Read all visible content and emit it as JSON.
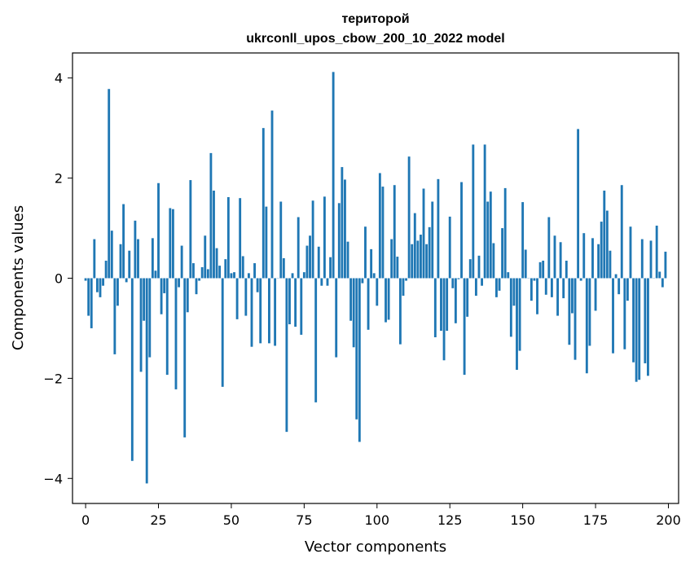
{
  "chart_data": {
    "type": "bar",
    "title_line1": "територой",
    "title_line2": "ukrconll_upos_cbow_200_10_2022 model",
    "xlabel": "Vector components",
    "ylabel": "Components values",
    "xlim": [
      -4.5,
      203.5
    ],
    "ylim": [
      -4.5,
      4.5
    ],
    "xticks": [
      0,
      25,
      50,
      75,
      100,
      125,
      150,
      175,
      200
    ],
    "yticks": [
      -4,
      -2,
      0,
      2,
      4
    ],
    "ytick_labels": [
      "−4",
      "−2",
      "0",
      "2",
      "4"
    ],
    "grid": false,
    "bar_color": "#1f77b4",
    "x": [
      0,
      1,
      2,
      3,
      4,
      5,
      6,
      7,
      8,
      9,
      10,
      11,
      12,
      13,
      14,
      15,
      16,
      17,
      18,
      19,
      20,
      21,
      22,
      23,
      24,
      25,
      26,
      27,
      28,
      29,
      30,
      31,
      32,
      33,
      34,
      35,
      36,
      37,
      38,
      39,
      40,
      41,
      42,
      43,
      44,
      45,
      46,
      47,
      48,
      49,
      50,
      51,
      52,
      53,
      54,
      55,
      56,
      57,
      58,
      59,
      60,
      61,
      62,
      63,
      64,
      65,
      66,
      67,
      68,
      69,
      70,
      71,
      72,
      73,
      74,
      75,
      76,
      77,
      78,
      79,
      80,
      81,
      82,
      83,
      84,
      85,
      86,
      87,
      88,
      89,
      90,
      91,
      92,
      93,
      94,
      95,
      96,
      97,
      98,
      99,
      100,
      101,
      102,
      103,
      104,
      105,
      106,
      107,
      108,
      109,
      110,
      111,
      112,
      113,
      114,
      115,
      116,
      117,
      118,
      119,
      120,
      121,
      122,
      123,
      124,
      125,
      126,
      127,
      128,
      129,
      130,
      131,
      132,
      133,
      134,
      135,
      136,
      137,
      138,
      139,
      140,
      141,
      142,
      143,
      144,
      145,
      146,
      147,
      148,
      149,
      150,
      151,
      152,
      153,
      154,
      155,
      156,
      157,
      158,
      159,
      160,
      161,
      162,
      163,
      164,
      165,
      166,
      167,
      168,
      169,
      170,
      171,
      172,
      173,
      174,
      175,
      176,
      177,
      178,
      179,
      180,
      181,
      182,
      183,
      184,
      185,
      186,
      187,
      188,
      189,
      190,
      191,
      192,
      193,
      194,
      195,
      196,
      197,
      198,
      199
    ],
    "values": [
      -0.05,
      -0.75,
      -1.0,
      0.78,
      -0.28,
      -0.38,
      -0.15,
      0.35,
      3.78,
      0.95,
      -1.52,
      -0.55,
      0.68,
      1.48,
      -0.08,
      0.55,
      -3.65,
      1.15,
      0.78,
      -1.87,
      -0.85,
      -4.1,
      -1.58,
      0.8,
      0.15,
      1.9,
      -0.72,
      -0.3,
      -1.93,
      1.4,
      1.38,
      -2.22,
      -0.18,
      0.65,
      -3.18,
      -0.68,
      1.96,
      0.3,
      -0.32,
      -0.05,
      0.22,
      0.85,
      0.18,
      2.5,
      1.75,
      0.6,
      0.25,
      -2.17,
      0.38,
      1.62,
      0.1,
      0.12,
      -0.82,
      1.6,
      0.44,
      -0.75,
      0.1,
      -1.37,
      0.3,
      -0.28,
      -1.3,
      3.0,
      1.43,
      -1.3,
      3.35,
      -1.35,
      0.0,
      1.53,
      0.4,
      -3.07,
      -0.92,
      0.1,
      -0.97,
      1.22,
      -1.13,
      0.12,
      0.65,
      0.85,
      1.55,
      -2.48,
      0.63,
      -0.15,
      1.63,
      -0.15,
      0.42,
      4.12,
      -1.58,
      1.5,
      2.22,
      1.97,
      0.73,
      -0.85,
      -1.38,
      -2.82,
      -3.27,
      -0.1,
      1.03,
      -1.03,
      0.58,
      0.1,
      -0.55,
      2.1,
      1.83,
      -0.88,
      -0.83,
      0.78,
      1.86,
      0.43,
      -1.32,
      -0.35,
      -0.05,
      2.43,
      0.68,
      1.3,
      0.75,
      0.87,
      1.79,
      0.68,
      1.02,
      1.53,
      -1.18,
      1.98,
      -1.05,
      -1.64,
      -1.05,
      1.23,
      -0.2,
      -0.9,
      -0.02,
      1.92,
      -1.93,
      -0.77,
      0.38,
      2.67,
      -0.35,
      0.45,
      -0.15,
      2.67,
      1.53,
      1.73,
      0.7,
      -0.38,
      -0.25,
      1.0,
      1.8,
      0.12,
      -1.17,
      -0.55,
      -1.83,
      -1.45,
      1.52,
      0.57,
      0.0,
      -0.45,
      -0.05,
      -0.72,
      0.32,
      0.35,
      -0.33,
      1.22,
      -0.38,
      0.85,
      -0.75,
      0.72,
      -0.4,
      0.35,
      -1.33,
      -0.7,
      -1.63,
      2.98,
      -0.05,
      0.9,
      -1.9,
      -1.35,
      0.8,
      -0.65,
      0.68,
      1.13,
      1.75,
      1.35,
      0.55,
      -1.5,
      0.08,
      -0.32,
      1.86,
      -1.42,
      -0.45,
      1.03,
      -1.68,
      -2.07,
      -2.03,
      0.78,
      -1.7,
      -1.95,
      0.75,
      0.0,
      1.05,
      0.13,
      -0.18,
      0.53
    ]
  }
}
